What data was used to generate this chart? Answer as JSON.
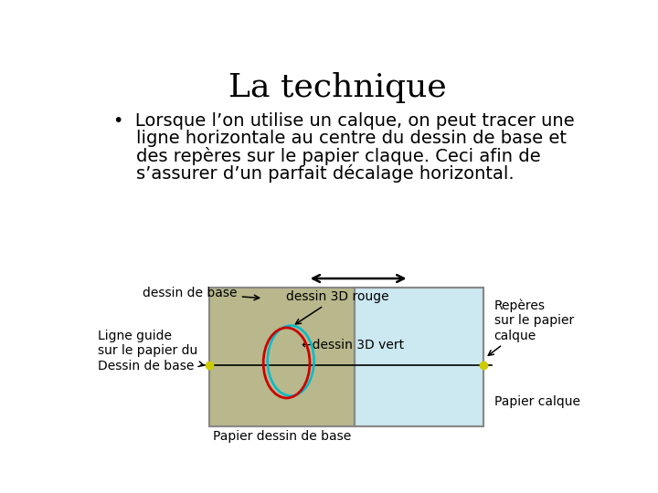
{
  "title": "La technique",
  "bullet_lines": [
    "•  Lorsque l’on utilise un calque, on peut tracer une",
    "    ligne horizontale au centre du dessin de base et",
    "    des repères sur le papier claque. Ceci afin de",
    "    s’assurer d’un parfait décalage horizontal."
  ],
  "bg_color": "#ffffff",
  "title_fontsize": 26,
  "body_fontsize": 14,
  "diagram": {
    "base_paper_color": "#b8b88c",
    "calque_color": "#cce8f0",
    "outer_rect_color": "#888888",
    "ellipse_red_color": "#cc0000",
    "ellipse_cyan_color": "#00bbcc",
    "guide_line_color": "#000000",
    "dot_color": "#cccc00",
    "arrow_color": "#000000",
    "label_dessin_base": "dessin de base",
    "label_dessin_3d_rouge": "dessin 3D rouge",
    "label_dessin_3d_vert": "dessin 3D vert",
    "label_ligne_guide_l1": "Ligne guide",
    "label_ligne_guide_l2": "sur le papier du",
    "label_ligne_guide_l3": "Dessin de base",
    "label_papier_dessin_base": "Papier dessin de base",
    "label_reperes_l1": "Repères",
    "label_reperes_l2": "sur le papier",
    "label_reperes_l3": "calque",
    "label_papier_calque": "Papier calque"
  }
}
